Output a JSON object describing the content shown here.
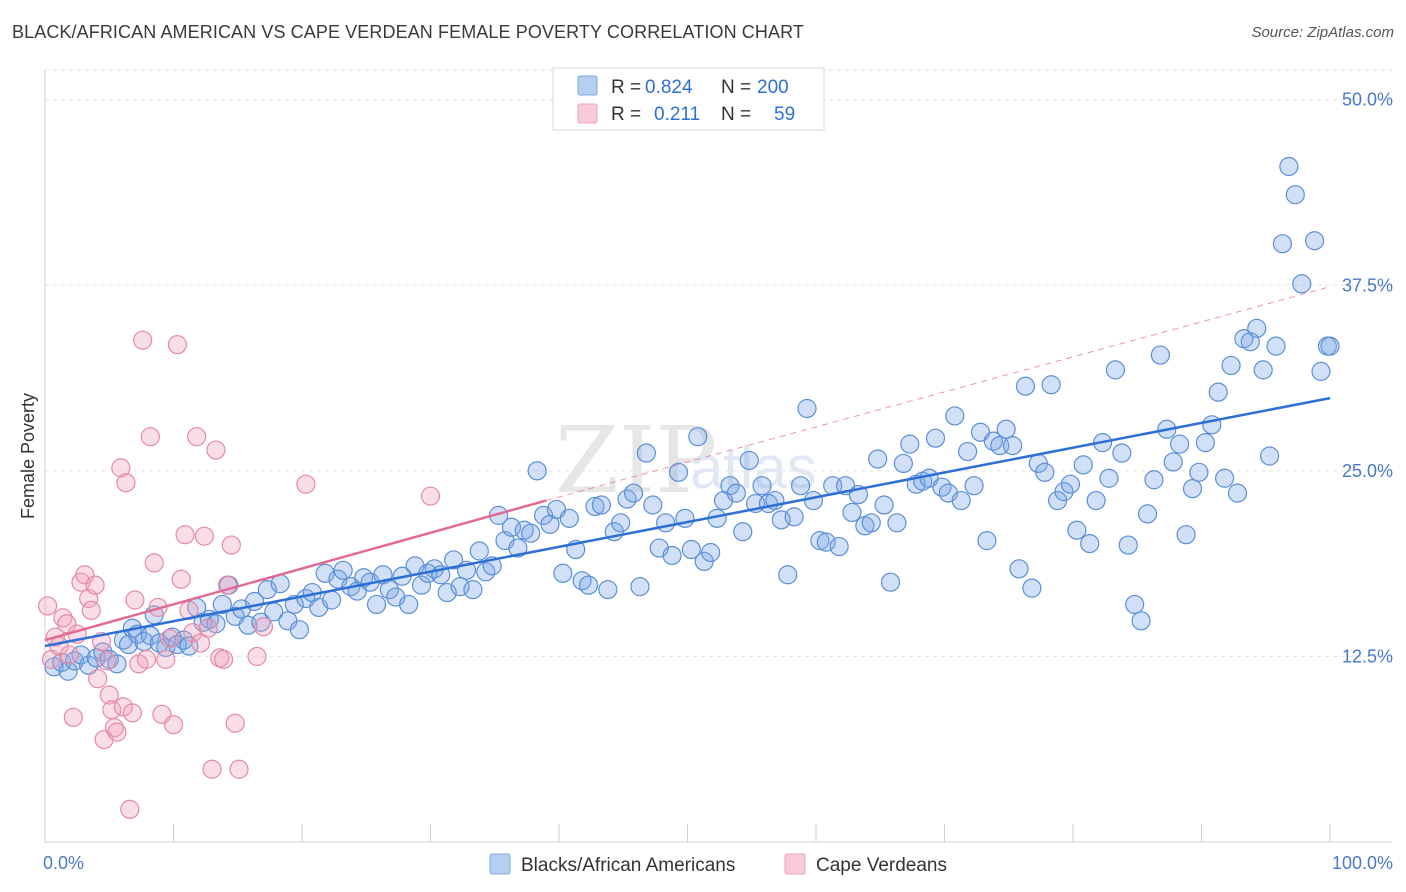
{
  "header": {
    "title": "BLACK/AFRICAN AMERICAN VS CAPE VERDEAN FEMALE POVERTY CORRELATION CHART",
    "source": "Source: ZipAtlas.com"
  },
  "watermark": {
    "zip": "ZIP",
    "atlas": "atlas"
  },
  "legend": {
    "rows": [
      {
        "r_label": "R =",
        "r_value": "0.824",
        "n_label": "N =",
        "n_value": "200",
        "color": "#7aa7e6"
      },
      {
        "r_label": "R =",
        "r_value": "0.211",
        "n_label": "N =",
        "n_value": "59",
        "color": "#f0a0bb"
      }
    ]
  },
  "chart_data": {
    "type": "scatter",
    "title": "BLACK/AFRICAN AMERICAN VS CAPE VERDEAN FEMALE POVERTY CORRELATION CHART",
    "xlabel": "",
    "ylabel": "Female Poverty",
    "xlim": [
      0,
      100
    ],
    "ylim": [
      0,
      52
    ],
    "x_ticks": [
      "0.0%",
      "100.0%"
    ],
    "y_ticks": [
      {
        "value": 12.5,
        "label": "12.5%"
      },
      {
        "value": 25.0,
        "label": "25.0%"
      },
      {
        "value": 37.5,
        "label": "37.5%"
      },
      {
        "value": 50.0,
        "label": "50.0%"
      }
    ],
    "grid": true,
    "legend_position": "top-center",
    "series": [
      {
        "name": "Blacks/African Americans",
        "color": "#7aa7e6",
        "stroke": "#5b8fd8",
        "trend": {
          "x0": 0,
          "y0": 13.2,
          "x1": 100,
          "y1": 29.9,
          "color": "#2e6fd6"
        },
        "points": [
          [
            0.7,
            11.8
          ],
          [
            1.3,
            12.1
          ],
          [
            1.8,
            11.5
          ],
          [
            2.3,
            12.2
          ],
          [
            2.8,
            12.6
          ],
          [
            3.4,
            11.9
          ],
          [
            4.0,
            12.4
          ],
          [
            4.5,
            12.8
          ],
          [
            5.0,
            12.3
          ],
          [
            5.6,
            12.0
          ],
          [
            6.1,
            13.6
          ],
          [
            6.5,
            13.3
          ],
          [
            6.8,
            14.4
          ],
          [
            7.2,
            14.0
          ],
          [
            7.7,
            13.5
          ],
          [
            8.2,
            13.9
          ],
          [
            8.5,
            15.3
          ],
          [
            8.9,
            13.4
          ],
          [
            9.4,
            13.1
          ],
          [
            9.9,
            13.8
          ],
          [
            10.3,
            13.3
          ],
          [
            10.8,
            13.6
          ],
          [
            11.2,
            13.2
          ],
          [
            11.8,
            15.8
          ],
          [
            12.3,
            14.8
          ],
          [
            12.8,
            15.0
          ],
          [
            13.3,
            14.7
          ],
          [
            13.8,
            16.0
          ],
          [
            14.3,
            17.3
          ],
          [
            14.8,
            15.2
          ],
          [
            15.3,
            15.7
          ],
          [
            15.8,
            14.6
          ],
          [
            16.3,
            16.2
          ],
          [
            16.8,
            14.8
          ],
          [
            17.3,
            17.0
          ],
          [
            17.8,
            15.5
          ],
          [
            18.3,
            17.4
          ],
          [
            18.9,
            14.9
          ],
          [
            19.4,
            16.0
          ],
          [
            19.8,
            14.3
          ],
          [
            20.3,
            16.4
          ],
          [
            20.8,
            16.8
          ],
          [
            21.3,
            15.8
          ],
          [
            21.8,
            18.1
          ],
          [
            22.3,
            16.3
          ],
          [
            22.8,
            17.7
          ],
          [
            23.2,
            18.3
          ],
          [
            23.8,
            17.2
          ],
          [
            24.3,
            16.9
          ],
          [
            24.8,
            17.8
          ],
          [
            25.3,
            17.5
          ],
          [
            25.8,
            16.0
          ],
          [
            26.3,
            18.0
          ],
          [
            26.8,
            17.0
          ],
          [
            27.3,
            16.5
          ],
          [
            27.8,
            17.9
          ],
          [
            28.3,
            16.0
          ],
          [
            28.8,
            18.6
          ],
          [
            29.3,
            17.3
          ],
          [
            29.8,
            18.1
          ],
          [
            30.3,
            18.4
          ],
          [
            30.8,
            18.0
          ],
          [
            31.3,
            16.8
          ],
          [
            31.8,
            19.0
          ],
          [
            32.3,
            17.2
          ],
          [
            32.8,
            18.3
          ],
          [
            33.3,
            17.0
          ],
          [
            33.8,
            19.6
          ],
          [
            34.3,
            18.2
          ],
          [
            34.8,
            18.6
          ],
          [
            35.3,
            22.0
          ],
          [
            35.8,
            20.3
          ],
          [
            36.3,
            21.2
          ],
          [
            36.8,
            19.8
          ],
          [
            37.3,
            21.0
          ],
          [
            37.8,
            20.8
          ],
          [
            38.3,
            25.0
          ],
          [
            38.8,
            22.0
          ],
          [
            39.3,
            21.4
          ],
          [
            39.8,
            22.4
          ],
          [
            40.3,
            18.1
          ],
          [
            40.8,
            21.8
          ],
          [
            41.3,
            19.7
          ],
          [
            41.8,
            17.6
          ],
          [
            42.3,
            17.3
          ],
          [
            42.8,
            22.6
          ],
          [
            43.3,
            22.7
          ],
          [
            43.8,
            17.0
          ],
          [
            44.3,
            20.9
          ],
          [
            44.8,
            21.5
          ],
          [
            45.3,
            23.1
          ],
          [
            45.8,
            23.5
          ],
          [
            46.3,
            17.2
          ],
          [
            46.8,
            26.2
          ],
          [
            47.3,
            22.7
          ],
          [
            47.8,
            19.8
          ],
          [
            48.3,
            21.5
          ],
          [
            48.8,
            19.3
          ],
          [
            49.3,
            24.9
          ],
          [
            49.8,
            21.8
          ],
          [
            50.3,
            19.7
          ],
          [
            50.8,
            27.3
          ],
          [
            51.3,
            18.9
          ],
          [
            51.8,
            19.5
          ],
          [
            52.3,
            21.8
          ],
          [
            52.8,
            23.0
          ],
          [
            53.3,
            24.0
          ],
          [
            53.8,
            23.5
          ],
          [
            54.3,
            20.9
          ],
          [
            54.8,
            25.7
          ],
          [
            55.3,
            22.8
          ],
          [
            55.8,
            24.0
          ],
          [
            56.3,
            22.8
          ],
          [
            56.8,
            23.0
          ],
          [
            57.3,
            21.7
          ],
          [
            57.8,
            18.0
          ],
          [
            58.3,
            21.9
          ],
          [
            58.8,
            24.0
          ],
          [
            59.3,
            29.2
          ],
          [
            59.8,
            23.0
          ],
          [
            60.3,
            20.3
          ],
          [
            60.8,
            20.2
          ],
          [
            61.3,
            24.0
          ],
          [
            61.8,
            19.9
          ],
          [
            62.3,
            24.0
          ],
          [
            62.8,
            22.2
          ],
          [
            63.3,
            23.4
          ],
          [
            63.8,
            21.3
          ],
          [
            64.3,
            21.5
          ],
          [
            64.8,
            25.8
          ],
          [
            65.3,
            22.7
          ],
          [
            65.8,
            17.5
          ],
          [
            66.3,
            21.5
          ],
          [
            66.8,
            25.5
          ],
          [
            67.3,
            26.8
          ],
          [
            67.8,
            24.1
          ],
          [
            68.3,
            24.3
          ],
          [
            68.8,
            24.5
          ],
          [
            69.3,
            27.2
          ],
          [
            69.8,
            23.9
          ],
          [
            70.3,
            23.5
          ],
          [
            70.8,
            28.7
          ],
          [
            71.3,
            23.0
          ],
          [
            71.8,
            26.3
          ],
          [
            72.3,
            24.0
          ],
          [
            72.8,
            27.6
          ],
          [
            73.3,
            20.3
          ],
          [
            73.8,
            27.0
          ],
          [
            74.3,
            26.7
          ],
          [
            74.8,
            27.8
          ],
          [
            75.3,
            26.7
          ],
          [
            75.8,
            18.4
          ],
          [
            76.3,
            30.7
          ],
          [
            76.8,
            17.1
          ],
          [
            77.3,
            25.5
          ],
          [
            77.8,
            24.9
          ],
          [
            78.3,
            30.8
          ],
          [
            78.8,
            23.0
          ],
          [
            79.3,
            23.6
          ],
          [
            79.8,
            24.1
          ],
          [
            80.3,
            21.0
          ],
          [
            80.8,
            25.4
          ],
          [
            81.3,
            20.1
          ],
          [
            81.8,
            23.0
          ],
          [
            82.3,
            26.9
          ],
          [
            82.8,
            24.5
          ],
          [
            83.3,
            31.8
          ],
          [
            83.8,
            26.2
          ],
          [
            84.3,
            20.0
          ],
          [
            84.8,
            16.0
          ],
          [
            85.3,
            14.9
          ],
          [
            85.8,
            22.1
          ],
          [
            86.3,
            24.4
          ],
          [
            86.8,
            32.8
          ],
          [
            87.3,
            27.8
          ],
          [
            87.8,
            25.6
          ],
          [
            88.3,
            26.8
          ],
          [
            88.8,
            20.7
          ],
          [
            89.3,
            23.8
          ],
          [
            89.8,
            24.9
          ],
          [
            90.3,
            26.9
          ],
          [
            90.8,
            28.1
          ],
          [
            91.3,
            30.3
          ],
          [
            91.8,
            24.5
          ],
          [
            92.3,
            32.1
          ],
          [
            92.8,
            23.5
          ],
          [
            93.3,
            33.9
          ],
          [
            93.8,
            33.7
          ],
          [
            94.3,
            34.6
          ],
          [
            94.8,
            31.8
          ],
          [
            95.3,
            26.0
          ],
          [
            95.8,
            33.4
          ],
          [
            96.3,
            40.3
          ],
          [
            96.8,
            45.5
          ],
          [
            97.3,
            43.6
          ],
          [
            97.8,
            37.6
          ],
          [
            98.8,
            40.5
          ],
          [
            99.3,
            31.7
          ],
          [
            99.8,
            33.4
          ],
          [
            100.0,
            33.4
          ]
        ]
      },
      {
        "name": "Cape Verdeans",
        "color": "#f0a0bb",
        "stroke": "#e48aa8",
        "trend": {
          "x0": 0,
          "y0": 13.6,
          "x1": 39.0,
          "y1": 23.0,
          "color": "#e06a93",
          "dash_x1": 100,
          "dash_y1": 37.4
        },
        "points": [
          [
            0.2,
            15.9
          ],
          [
            0.5,
            12.3
          ],
          [
            0.8,
            13.8
          ],
          [
            1.1,
            13.2
          ],
          [
            1.4,
            15.1
          ],
          [
            1.7,
            14.7
          ],
          [
            1.9,
            12.6
          ],
          [
            2.2,
            8.4
          ],
          [
            2.5,
            14.0
          ],
          [
            2.8,
            17.5
          ],
          [
            3.1,
            18.0
          ],
          [
            3.4,
            16.4
          ],
          [
            3.6,
            15.6
          ],
          [
            3.9,
            17.3
          ],
          [
            4.1,
            11.0
          ],
          [
            4.4,
            13.5
          ],
          [
            4.6,
            6.9
          ],
          [
            4.8,
            12.2
          ],
          [
            5.0,
            9.9
          ],
          [
            5.2,
            8.9
          ],
          [
            5.4,
            7.7
          ],
          [
            5.6,
            7.4
          ],
          [
            5.9,
            25.2
          ],
          [
            6.1,
            9.1
          ],
          [
            6.3,
            24.2
          ],
          [
            6.6,
            2.2
          ],
          [
            6.8,
            8.7
          ],
          [
            7.0,
            16.3
          ],
          [
            7.3,
            12.0
          ],
          [
            7.6,
            33.8
          ],
          [
            7.9,
            12.3
          ],
          [
            8.2,
            27.3
          ],
          [
            8.5,
            18.8
          ],
          [
            8.8,
            15.8
          ],
          [
            9.1,
            8.6
          ],
          [
            9.4,
            12.3
          ],
          [
            9.7,
            13.7
          ],
          [
            10.0,
            7.9
          ],
          [
            10.3,
            33.5
          ],
          [
            10.6,
            17.7
          ],
          [
            10.9,
            20.7
          ],
          [
            11.2,
            15.6
          ],
          [
            11.5,
            14.1
          ],
          [
            11.8,
            27.3
          ],
          [
            12.1,
            13.4
          ],
          [
            12.4,
            20.6
          ],
          [
            12.7,
            14.4
          ],
          [
            13.0,
            4.9
          ],
          [
            13.3,
            26.4
          ],
          [
            13.6,
            12.4
          ],
          [
            13.9,
            12.3
          ],
          [
            14.2,
            17.3
          ],
          [
            14.5,
            20.0
          ],
          [
            14.8,
            8.0
          ],
          [
            15.1,
            4.9
          ],
          [
            16.5,
            12.5
          ],
          [
            17.0,
            14.5
          ],
          [
            20.3,
            24.1
          ],
          [
            30.0,
            23.3
          ]
        ]
      }
    ]
  },
  "bottom_legend": {
    "items": [
      {
        "label": "Blacks/African Americans",
        "color": "#7aa7e6"
      },
      {
        "label": "Cape Verdeans",
        "color": "#f0a0bb"
      }
    ]
  }
}
